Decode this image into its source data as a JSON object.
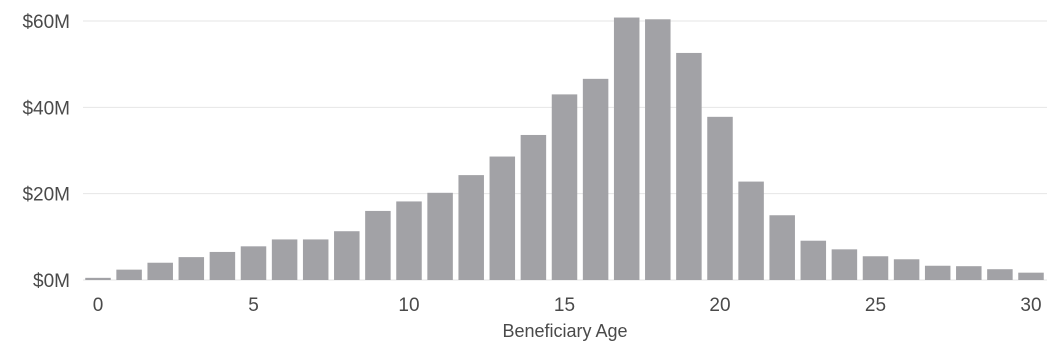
{
  "chart_data": {
    "type": "bar",
    "title": "",
    "xlabel": "Beneficiary Age",
    "ylabel": "",
    "categories": [
      0,
      1,
      2,
      3,
      4,
      5,
      6,
      7,
      8,
      9,
      10,
      11,
      12,
      13,
      14,
      15,
      16,
      17,
      18,
      19,
      20,
      21,
      22,
      23,
      24,
      25,
      26,
      27,
      28,
      29,
      30
    ],
    "values": [
      0.5,
      2.4,
      4.0,
      5.3,
      6.5,
      7.8,
      9.4,
      9.4,
      11.3,
      16.0,
      18.2,
      20.2,
      24.3,
      28.6,
      33.6,
      43.0,
      46.6,
      60.8,
      60.4,
      52.6,
      37.8,
      22.8,
      15.0,
      9.1,
      7.1,
      5.5,
      4.8,
      3.3,
      3.2,
      2.5,
      1.7
    ],
    "ylim": [
      0,
      60
    ],
    "yticks": [
      0,
      20,
      40,
      60
    ],
    "ytick_labels": [
      "$0M",
      "$20M",
      "$40M",
      "$60M"
    ],
    "xticks": [
      0,
      5,
      10,
      15,
      20,
      25,
      30
    ],
    "xtick_labels": [
      "0",
      "5",
      "10",
      "15",
      "20",
      "25",
      "30"
    ],
    "grid": true,
    "bar_color": "#a2a2a6",
    "grid_color": "#e6e6e6"
  }
}
